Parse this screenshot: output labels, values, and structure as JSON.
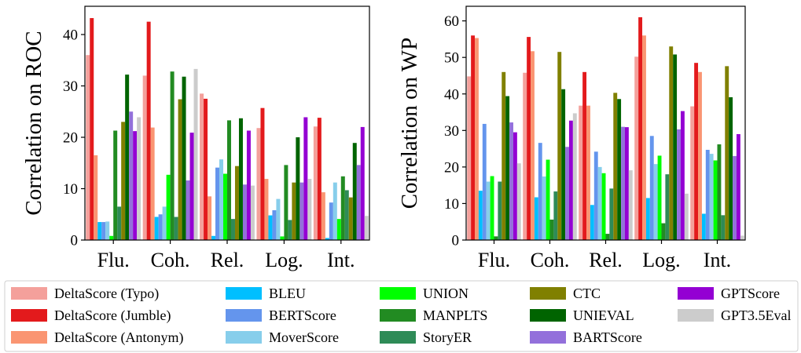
{
  "chart_data": [
    {
      "type": "bar",
      "ylabel": "Correlation on ROC",
      "ylim": [
        0,
        45.5
      ],
      "yticks": [
        0,
        10,
        20,
        30,
        40
      ],
      "categories": [
        "Flu.",
        "Coh.",
        "Rel.",
        "Log.",
        "Int."
      ],
      "series": [
        {
          "name": "DeltaScore (Typo)",
          "color": "#f4a09b",
          "values": [
            36.0,
            32.0,
            28.5,
            21.8,
            22.1
          ]
        },
        {
          "name": "DeltaScore (Jumble)",
          "color": "#e31a1c",
          "values": [
            43.2,
            42.5,
            27.5,
            25.7,
            23.8
          ]
        },
        {
          "name": "DeltaScore (Antonym)",
          "color": "#fa9572",
          "values": [
            16.5,
            21.9,
            8.5,
            11.9,
            9.3
          ]
        },
        {
          "name": "BLEU",
          "color": "#00bfff",
          "values": [
            3.5,
            4.5,
            0.8,
            4.8,
            0.4
          ]
        },
        {
          "name": "BERTScore",
          "color": "#6495ed",
          "values": [
            3.5,
            5.0,
            14.1,
            5.8,
            7.3
          ]
        },
        {
          "name": "MoverScore",
          "color": "#87ceeb",
          "values": [
            3.6,
            6.5,
            15.7,
            8.0,
            11.2
          ]
        },
        {
          "name": "UNION",
          "color": "#00ff00",
          "values": [
            0.8,
            12.7,
            12.9,
            0.7,
            4.1
          ]
        },
        {
          "name": "MANPLTS",
          "color": "#228b22",
          "values": [
            21.3,
            32.8,
            23.3,
            14.6,
            12.4
          ]
        },
        {
          "name": "StoryER",
          "color": "#2e8b57",
          "values": [
            6.5,
            4.5,
            4.1,
            3.9,
            9.7
          ]
        },
        {
          "name": "CTC",
          "color": "#808000",
          "values": [
            23.0,
            27.4,
            14.4,
            11.2,
            8.3
          ]
        },
        {
          "name": "UNIEVAL",
          "color": "#006400",
          "values": [
            32.2,
            31.8,
            23.7,
            20.0,
            18.9
          ]
        },
        {
          "name": "BARTScore",
          "color": "#9370db",
          "values": [
            25.0,
            11.6,
            10.8,
            11.2,
            14.6
          ]
        },
        {
          "name": "GPTScore",
          "color": "#9400d3",
          "values": [
            21.2,
            20.9,
            21.3,
            23.9,
            22.0
          ]
        },
        {
          "name": "GPT3.5Eval",
          "color": "#cccccc",
          "values": [
            23.9,
            33.3,
            10.6,
            11.9,
            4.7
          ]
        }
      ]
    },
    {
      "type": "bar",
      "ylabel": "Correlation on WP",
      "ylim": [
        0,
        64
      ],
      "yticks": [
        0,
        10,
        20,
        30,
        40,
        50,
        60
      ],
      "categories": [
        "Flu.",
        "Coh.",
        "Rel.",
        "Log.",
        "Int."
      ],
      "series": [
        {
          "name": "DeltaScore (Typo)",
          "color": "#f4a09b",
          "values": [
            44.8,
            45.8,
            36.8,
            50.2,
            36.6
          ]
        },
        {
          "name": "DeltaScore (Jumble)",
          "color": "#e31a1c",
          "values": [
            56.0,
            55.6,
            46.0,
            61.0,
            48.5
          ]
        },
        {
          "name": "DeltaScore (Antonym)",
          "color": "#fa9572",
          "values": [
            55.3,
            51.7,
            36.8,
            56.0,
            46.0
          ]
        },
        {
          "name": "BLEU",
          "color": "#00bfff",
          "values": [
            13.5,
            11.7,
            9.6,
            11.5,
            7.2
          ]
        },
        {
          "name": "BERTScore",
          "color": "#6495ed",
          "values": [
            31.8,
            26.6,
            24.2,
            28.5,
            24.7
          ]
        },
        {
          "name": "MoverScore",
          "color": "#87ceeb",
          "values": [
            16.0,
            17.4,
            20.0,
            20.8,
            23.6
          ]
        },
        {
          "name": "UNION",
          "color": "#00ff00",
          "values": [
            17.5,
            22.0,
            18.3,
            23.1,
            21.8
          ]
        },
        {
          "name": "MANPLTS",
          "color": "#228b22",
          "values": [
            1.0,
            5.6,
            1.7,
            4.6,
            26.2
          ]
        },
        {
          "name": "StoryER",
          "color": "#2e8b57",
          "values": [
            16.0,
            13.3,
            14.1,
            18.0,
            6.8
          ]
        },
        {
          "name": "CTC",
          "color": "#808000",
          "values": [
            46.0,
            51.5,
            40.3,
            53.0,
            47.6
          ]
        },
        {
          "name": "UNIEVAL",
          "color": "#006400",
          "values": [
            39.4,
            41.3,
            38.6,
            50.8,
            39.1
          ]
        },
        {
          "name": "BARTScore",
          "color": "#9370db",
          "values": [
            32.2,
            25.5,
            31.0,
            30.3,
            23.0
          ]
        },
        {
          "name": "GPTScore",
          "color": "#9400d3",
          "values": [
            29.5,
            32.7,
            30.9,
            35.3,
            29.0
          ]
        },
        {
          "name": "GPT3.5Eval",
          "color": "#cccccc",
          "values": [
            21.0,
            34.7,
            19.1,
            12.7,
            1.2
          ]
        }
      ]
    }
  ],
  "legend": {
    "placement": "bottom",
    "entries": [
      {
        "label": "DeltaScore (Typo)",
        "color": "#f4a09b"
      },
      {
        "label": "DeltaScore (Jumble)",
        "color": "#e31a1c"
      },
      {
        "label": "DeltaScore (Antonym)",
        "color": "#fa9572"
      },
      {
        "label": "BLEU",
        "color": "#00bfff"
      },
      {
        "label": "BERTScore",
        "color": "#6495ed"
      },
      {
        "label": "MoverScore",
        "color": "#87ceeb"
      },
      {
        "label": "UNION",
        "color": "#00ff00"
      },
      {
        "label": "MANPLTS",
        "color": "#228b22"
      },
      {
        "label": "StoryER",
        "color": "#2e8b57"
      },
      {
        "label": "CTC",
        "color": "#808000"
      },
      {
        "label": "UNIEVAL",
        "color": "#006400"
      },
      {
        "label": "BARTScore",
        "color": "#9370db"
      },
      {
        "label": "GPTScore",
        "color": "#9400d3"
      },
      {
        "label": "GPT3.5Eval",
        "color": "#cccccc"
      }
    ]
  }
}
